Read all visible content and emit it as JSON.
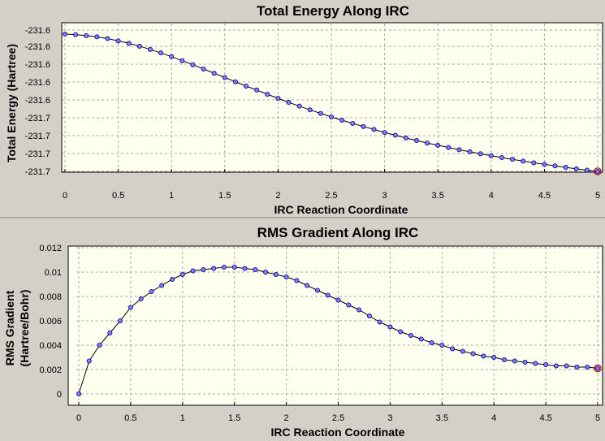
{
  "chart_data": [
    {
      "type": "line",
      "title": "Total Energy Along IRC",
      "xlabel": "IRC Reaction Coordinate",
      "ylabel": "Total Energy (Hartree)",
      "xlim": [
        0,
        5
      ],
      "x_ticks": [
        "0",
        "0.5",
        "1",
        "1.5",
        "2",
        "2.5",
        "3",
        "3.5",
        "4",
        "4.5",
        "5"
      ],
      "y_ticks": [
        "-231.6",
        "-231.6",
        "-231.6",
        "-231.6",
        "-231.6",
        "-231.7",
        "-231.7",
        "-231.7",
        "-231.7"
      ],
      "grid": true,
      "marker_color": "#7f7fff",
      "highlight_color": "#c00000",
      "x": [
        0,
        0.1,
        0.2,
        0.3,
        0.4,
        0.5,
        0.6,
        0.7,
        0.8,
        0.9,
        1.0,
        1.1,
        1.2,
        1.3,
        1.4,
        1.5,
        1.6,
        1.7,
        1.8,
        1.9,
        2.0,
        2.1,
        2.2,
        2.3,
        2.4,
        2.5,
        2.6,
        2.7,
        2.8,
        2.9,
        3.0,
        3.1,
        3.2,
        3.3,
        3.4,
        3.5,
        3.6,
        3.7,
        3.8,
        3.9,
        4.0,
        4.1,
        4.2,
        4.3,
        4.4,
        4.5,
        4.6,
        4.7,
        4.8,
        4.9,
        5.0
      ],
      "y": [
        -231.6065,
        -231.6067,
        -231.6071,
        -231.6076,
        -231.6083,
        -231.6092,
        -231.6102,
        -231.6113,
        -231.6126,
        -231.614,
        -231.6155,
        -231.6171,
        -231.6187,
        -231.6204,
        -231.6221,
        -231.6238,
        -231.6255,
        -231.6272,
        -231.6288,
        -231.6305,
        -231.6321,
        -231.6337,
        -231.6352,
        -231.6367,
        -231.6381,
        -231.6395,
        -231.6408,
        -231.6421,
        -231.6433,
        -231.6445,
        -231.6457,
        -231.6468,
        -231.6479,
        -231.6489,
        -231.6499,
        -231.6508,
        -231.6517,
        -231.6526,
        -231.6534,
        -231.6542,
        -231.655,
        -231.6557,
        -231.6564,
        -231.6571,
        -231.6578,
        -231.6584,
        -231.659,
        -231.6596,
        -231.6602,
        -231.6607,
        -231.6612
      ]
    },
    {
      "type": "line",
      "title": "RMS Gradient Along IRC",
      "xlabel": "IRC Reaction Coordinate",
      "ylabel": "RMS Gradient (Hartree/Bohr)",
      "xlim": [
        0,
        5
      ],
      "ylim": [
        0,
        0.012
      ],
      "x_ticks": [
        "0",
        "0.5",
        "1",
        "1.5",
        "2",
        "2.5",
        "3",
        "3.5",
        "4",
        "4.5",
        "5"
      ],
      "y_ticks": [
        "0",
        "0.002",
        "0.004",
        "0.006",
        "0.008",
        "0.01",
        "0.012"
      ],
      "grid": true,
      "marker_color": "#7f7fff",
      "highlight_color": "#c00000",
      "x": [
        0,
        0.1,
        0.2,
        0.3,
        0.4,
        0.5,
        0.6,
        0.7,
        0.8,
        0.9,
        1.0,
        1.1,
        1.2,
        1.3,
        1.4,
        1.5,
        1.6,
        1.7,
        1.8,
        1.9,
        2.0,
        2.1,
        2.2,
        2.3,
        2.4,
        2.5,
        2.6,
        2.7,
        2.8,
        2.9,
        3.0,
        3.1,
        3.2,
        3.3,
        3.4,
        3.5,
        3.6,
        3.7,
        3.8,
        3.9,
        4.0,
        4.1,
        4.2,
        4.3,
        4.4,
        4.5,
        4.6,
        4.7,
        4.8,
        4.9,
        5.0
      ],
      "y": [
        0.0,
        0.0027,
        0.004,
        0.005,
        0.006,
        0.0071,
        0.0078,
        0.0084,
        0.0089,
        0.0094,
        0.0098,
        0.0101,
        0.0102,
        0.0103,
        0.0104,
        0.0104,
        0.0103,
        0.0102,
        0.01,
        0.0098,
        0.0096,
        0.0093,
        0.0089,
        0.0085,
        0.0081,
        0.0077,
        0.0073,
        0.0069,
        0.0064,
        0.0059,
        0.0055,
        0.0051,
        0.0048,
        0.0045,
        0.0042,
        0.004,
        0.0037,
        0.0035,
        0.0033,
        0.0031,
        0.003,
        0.0028,
        0.0027,
        0.0026,
        0.0025,
        0.0024,
        0.0023,
        0.0023,
        0.0022,
        0.0022,
        0.0021
      ]
    }
  ]
}
